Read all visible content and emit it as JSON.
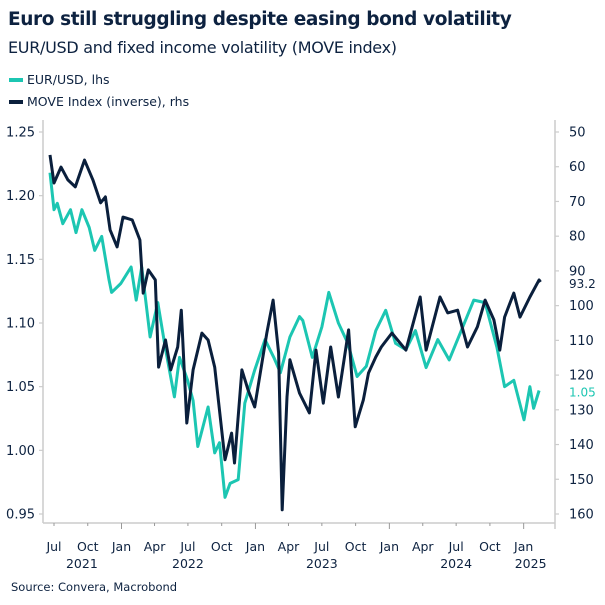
{
  "title": "Euro still struggling despite easing bond volatility",
  "subtitle": "EUR/USD and fixed income volatility (MOVE index)",
  "source": "Source: Convera, Macrobond",
  "colors": {
    "eurusd": "#1cc6b2",
    "move": "#0a1f3c",
    "text": "#0d2240",
    "axis": "#cccccc"
  },
  "chart_data": {
    "type": "line",
    "title": "Euro still struggling despite easing bond volatility",
    "subtitle": "EUR/USD and fixed income volatility (MOVE index)",
    "legend_position": "top-left",
    "grid": false,
    "x_ticks": [
      {
        "date": "2021-07-01",
        "label": "Jul"
      },
      {
        "date": "2021-10-01",
        "label": "Oct"
      },
      {
        "date": "2022-01-01",
        "label": "Jan"
      },
      {
        "date": "2022-04-01",
        "label": "Apr"
      },
      {
        "date": "2022-07-01",
        "label": "Jul"
      },
      {
        "date": "2022-10-01",
        "label": "Oct"
      },
      {
        "date": "2023-01-01",
        "label": "Jan"
      },
      {
        "date": "2023-04-01",
        "label": "Apr"
      },
      {
        "date": "2023-07-01",
        "label": "Jul"
      },
      {
        "date": "2023-10-01",
        "label": "Oct"
      },
      {
        "date": "2024-01-01",
        "label": "Jan"
      },
      {
        "date": "2024-04-01",
        "label": "Apr"
      },
      {
        "date": "2024-07-01",
        "label": "Jul"
      },
      {
        "date": "2024-10-01",
        "label": "Oct"
      },
      {
        "date": "2025-01-01",
        "label": "Jan"
      }
    ],
    "year_labels": [
      {
        "date": "2021-09-15",
        "label": "2021"
      },
      {
        "date": "2022-07-01",
        "label": "2022"
      },
      {
        "date": "2023-07-01",
        "label": "2023"
      },
      {
        "date": "2024-07-01",
        "label": "2024"
      },
      {
        "date": "2025-01-20",
        "label": "2025"
      }
    ],
    "left_axis": {
      "ylim": [
        0.95,
        1.25
      ],
      "ticks": [
        "0.95",
        "1.00",
        "1.05",
        "1.10",
        "1.15",
        "1.20",
        "1.25"
      ]
    },
    "right_axis": {
      "ylim": [
        50,
        160
      ],
      "inverted": true,
      "ticks": [
        "50",
        "60",
        "70",
        "80",
        "90",
        "100",
        "110",
        "120",
        "130",
        "140",
        "150",
        "160"
      ]
    },
    "series": [
      {
        "name": "EUR/USD, lhs",
        "axis": "left",
        "end_label": "1.05",
        "points": [
          [
            "2021-06-20",
            1.218
          ],
          [
            "2021-07-01",
            1.189
          ],
          [
            "2021-07-10",
            1.194
          ],
          [
            "2021-07-25",
            1.178
          ],
          [
            "2021-08-15",
            1.189
          ],
          [
            "2021-08-30",
            1.171
          ],
          [
            "2021-09-15",
            1.189
          ],
          [
            "2021-10-05",
            1.175
          ],
          [
            "2021-10-20",
            1.157
          ],
          [
            "2021-11-08",
            1.168
          ],
          [
            "2021-11-28",
            1.134
          ],
          [
            "2021-12-05",
            1.124
          ],
          [
            "2021-12-30",
            1.131
          ],
          [
            "2022-01-27",
            1.144
          ],
          [
            "2022-02-10",
            1.118
          ],
          [
            "2022-02-25",
            1.144
          ],
          [
            "2022-03-20",
            1.089
          ],
          [
            "2022-04-10",
            1.116
          ],
          [
            "2022-04-30",
            1.081
          ],
          [
            "2022-05-25",
            1.042
          ],
          [
            "2022-06-08",
            1.073
          ],
          [
            "2022-06-30",
            1.055
          ],
          [
            "2022-07-15",
            1.039
          ],
          [
            "2022-07-28",
            1.003
          ],
          [
            "2022-08-25",
            1.034
          ],
          [
            "2022-09-12",
            0.998
          ],
          [
            "2022-09-25",
            1.006
          ],
          [
            "2022-10-10",
            0.963
          ],
          [
            "2022-10-24",
            0.974
          ],
          [
            "2022-11-15",
            0.977
          ],
          [
            "2022-12-03",
            1.037
          ],
          [
            "2022-12-30",
            1.063
          ],
          [
            "2023-01-27",
            1.087
          ],
          [
            "2023-02-20",
            1.073
          ],
          [
            "2023-03-10",
            1.061
          ],
          [
            "2023-04-05",
            1.089
          ],
          [
            "2023-05-01",
            1.105
          ],
          [
            "2023-05-10",
            1.102
          ],
          [
            "2023-06-05",
            1.073
          ],
          [
            "2023-07-01",
            1.097
          ],
          [
            "2023-07-20",
            1.124
          ],
          [
            "2023-08-15",
            1.1
          ],
          [
            "2023-09-10",
            1.084
          ],
          [
            "2023-10-05",
            1.058
          ],
          [
            "2023-10-30",
            1.066
          ],
          [
            "2023-11-25",
            1.094
          ],
          [
            "2023-12-22",
            1.11
          ],
          [
            "2024-01-18",
            1.084
          ],
          [
            "2024-02-15",
            1.079
          ],
          [
            "2024-03-12",
            1.094
          ],
          [
            "2024-04-10",
            1.065
          ],
          [
            "2024-05-12",
            1.087
          ],
          [
            "2024-06-12",
            1.071
          ],
          [
            "2024-07-12",
            1.092
          ],
          [
            "2024-08-18",
            1.118
          ],
          [
            "2024-09-18",
            1.116
          ],
          [
            "2024-10-20",
            1.081
          ],
          [
            "2024-11-10",
            1.05
          ],
          [
            "2024-12-05",
            1.055
          ],
          [
            "2025-01-02",
            1.024
          ],
          [
            "2025-01-18",
            1.05
          ],
          [
            "2025-01-28",
            1.033
          ],
          [
            "2025-02-12",
            1.047
          ]
        ]
      },
      {
        "name": "MOVE Index (inverse), rhs",
        "axis": "right",
        "end_label": "93.2",
        "points": [
          [
            "2021-06-20",
            56.6
          ],
          [
            "2021-07-01",
            64.7
          ],
          [
            "2021-07-20",
            60.1
          ],
          [
            "2021-08-08",
            63.8
          ],
          [
            "2021-08-28",
            65.8
          ],
          [
            "2021-09-22",
            58.1
          ],
          [
            "2021-10-15",
            63.8
          ],
          [
            "2021-11-05",
            70.4
          ],
          [
            "2021-11-18",
            68.7
          ],
          [
            "2021-12-01",
            78.2
          ],
          [
            "2021-12-20",
            83.1
          ],
          [
            "2022-01-05",
            74.5
          ],
          [
            "2022-01-30",
            75.3
          ],
          [
            "2022-02-20",
            81.1
          ],
          [
            "2022-03-01",
            96.4
          ],
          [
            "2022-03-15",
            89.7
          ],
          [
            "2022-04-03",
            92.6
          ],
          [
            "2022-04-12",
            117.7
          ],
          [
            "2022-05-01",
            109.9
          ],
          [
            "2022-05-15",
            118.5
          ],
          [
            "2022-06-03",
            111.9
          ],
          [
            "2022-06-13",
            101.3
          ],
          [
            "2022-06-28",
            133.8
          ],
          [
            "2022-07-15",
            118.5
          ],
          [
            "2022-08-08",
            107.9
          ],
          [
            "2022-08-25",
            109.9
          ],
          [
            "2022-09-12",
            117.7
          ],
          [
            "2022-10-10",
            144.4
          ],
          [
            "2022-10-28",
            136.7
          ],
          [
            "2022-11-05",
            145.3
          ],
          [
            "2022-11-25",
            118.5
          ],
          [
            "2022-12-12",
            124.3
          ],
          [
            "2022-12-30",
            129.2
          ],
          [
            "2023-02-01",
            107.9
          ],
          [
            "2023-02-18",
            98.4
          ],
          [
            "2023-03-05",
            113.6
          ],
          [
            "2023-03-15",
            158.8
          ],
          [
            "2023-03-28",
            126.3
          ],
          [
            "2023-04-05",
            115.6
          ],
          [
            "2023-05-01",
            125.2
          ],
          [
            "2023-05-28",
            130.9
          ],
          [
            "2023-06-15",
            112.8
          ],
          [
            "2023-07-05",
            128.1
          ],
          [
            "2023-07-25",
            111.9
          ],
          [
            "2023-08-15",
            126.3
          ],
          [
            "2023-09-12",
            107.0
          ],
          [
            "2023-09-30",
            134.9
          ],
          [
            "2023-10-22",
            127.2
          ],
          [
            "2023-11-05",
            119.4
          ],
          [
            "2023-11-25",
            114.8
          ],
          [
            "2023-12-10",
            111.9
          ],
          [
            "2024-01-08",
            107.9
          ],
          [
            "2024-02-15",
            112.8
          ],
          [
            "2024-03-25",
            97.5
          ],
          [
            "2024-04-10",
            112.8
          ],
          [
            "2024-05-18",
            97.5
          ],
          [
            "2024-06-08",
            102.1
          ],
          [
            "2024-07-05",
            101.3
          ],
          [
            "2024-08-01",
            111.9
          ],
          [
            "2024-08-28",
            106.1
          ],
          [
            "2024-09-18",
            98.4
          ],
          [
            "2024-10-12",
            104.1
          ],
          [
            "2024-10-28",
            112.8
          ],
          [
            "2024-11-10",
            103.3
          ],
          [
            "2024-12-05",
            96.4
          ],
          [
            "2024-12-22",
            103.3
          ],
          [
            "2025-01-18",
            97.5
          ],
          [
            "2025-02-12",
            92.6
          ],
          [
            "2025-02-16",
            93.2
          ]
        ]
      }
    ]
  }
}
